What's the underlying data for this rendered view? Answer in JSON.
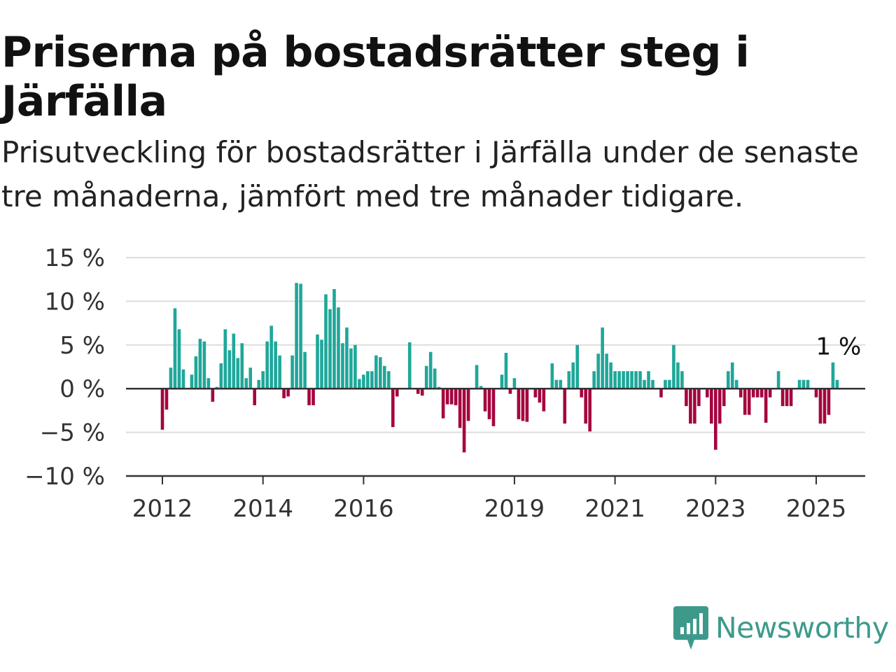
{
  "title": "Priserna på bostadsrätter steg i Järfälla",
  "subtitle": "Prisutveckling för bostadsrätter i Järfälla under de senaste tre månaderna, jämfört med tre månader tidigare.",
  "brand": {
    "name": "Newsworthy",
    "icon": "newsworthy-logo-icon",
    "color": "#3d9a8b"
  },
  "chart_data": {
    "type": "bar",
    "ylim": [
      -10,
      15
    ],
    "yticks": [
      {
        "value": 15,
        "label": "15 %"
      },
      {
        "value": 10,
        "label": "10 %"
      },
      {
        "value": 5,
        "label": "5 %"
      },
      {
        "value": 0,
        "label": "0 %"
      },
      {
        "value": -5,
        "label": "−5 %"
      },
      {
        "value": -10,
        "label": "−10 %"
      }
    ],
    "xticks": [
      {
        "date": "2012-01",
        "label": "2012"
      },
      {
        "date": "2014-01",
        "label": "2014"
      },
      {
        "date": "2016-01",
        "label": "2016"
      },
      {
        "date": "2019-01",
        "label": "2019"
      },
      {
        "date": "2021-01",
        "label": "2021"
      },
      {
        "date": "2023-01",
        "label": "2023"
      },
      {
        "date": "2025-01",
        "label": "2025"
      }
    ],
    "grid": true,
    "colors": {
      "positive": "#1fa79a",
      "negative": "#a5043f",
      "grid": "#dddddd",
      "axis": "#333333"
    },
    "start": "2012-01",
    "end": "2025-04",
    "values": [
      -4.7,
      -2.4,
      2.4,
      9.2,
      6.8,
      2.2,
      0,
      1.6,
      3.7,
      5.7,
      5.4,
      1.2,
      -1.5,
      0.2,
      2.9,
      6.8,
      4.4,
      6.3,
      3.5,
      5.2,
      1.2,
      2.4,
      -1.9,
      1.0,
      2.0,
      5.4,
      7.2,
      5.4,
      3.8,
      -1.1,
      -0.9,
      3.8,
      12.1,
      12.0,
      4.2,
      -1.9,
      -1.9,
      6.2,
      5.6,
      10.8,
      9.1,
      11.4,
      9.3,
      5.2,
      7.0,
      4.6,
      5.0,
      1.1,
      1.6,
      2.0,
      2.0,
      3.8,
      3.6,
      2.6,
      2.0,
      -4.4,
      -0.9,
      0,
      0,
      5.3,
      0,
      -0.6,
      -0.8,
      2.6,
      4.2,
      2.3,
      0.2,
      -3.4,
      -1.8,
      -1.8,
      -1.9,
      -4.5,
      -7.3,
      -3.7,
      0,
      2.7,
      0.3,
      -2.6,
      -3.5,
      -4.3,
      0,
      1.6,
      4.1,
      -0.6,
      1.2,
      -3.5,
      -3.7,
      -3.8,
      0,
      -1.0,
      -1.6,
      -2.6,
      0,
      2.9,
      1.0,
      1.0,
      -4.0,
      2.0,
      3.0,
      5.0,
      -1.0,
      -4.0,
      -4.9,
      2.0,
      4.0,
      7.0,
      4.0,
      3.0,
      2.0,
      2.0,
      2.0,
      2.0,
      2.0,
      2.0,
      2.0,
      1.0,
      2.0,
      1.0,
      0,
      -1.0,
      1.0,
      1.0,
      5.0,
      3.0,
      2.0,
      -2.0,
      -4.0,
      -4.0,
      -2.0,
      0,
      -1.0,
      -4.0,
      -7.0,
      -4.0,
      -2.0,
      2.0,
      3.0,
      1.0,
      -1.0,
      -3.0,
      -3.0,
      -1.0,
      -1.0,
      -1.0,
      -3.9,
      -1.0,
      0,
      2.0,
      -2.0,
      -2.0,
      -2.0,
      0,
      1.0,
      1.0,
      1.0,
      0,
      -1.0,
      -4.0,
      -4.0,
      -3.0,
      3.0,
      1.0
    ],
    "last_label": "1 %"
  }
}
